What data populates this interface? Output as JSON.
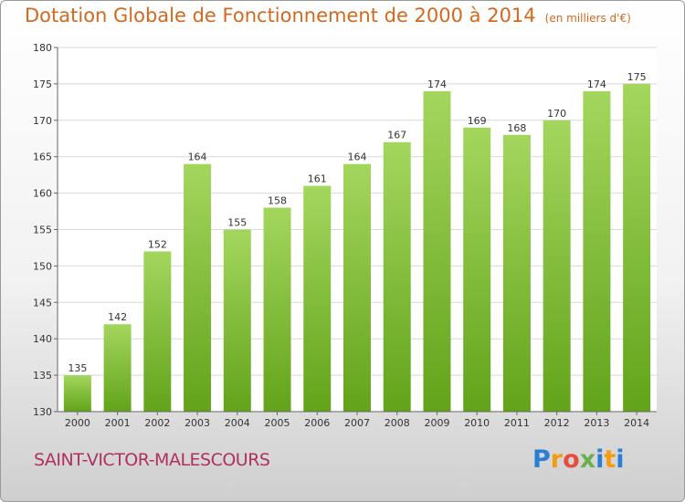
{
  "title": "Dotation Globale de Fonctionnement de 2000 à 2014",
  "unit": "(en milliers d'€)",
  "commune": "SAINT-VICTOR-MALESCOURS",
  "logo": {
    "letters": [
      "P",
      "r",
      "o",
      "x",
      "i",
      "t",
      "i"
    ],
    "colors": [
      "#2a7fd4",
      "#f39c12",
      "#e74c3c",
      "#6ab04c",
      "#2a7fd4",
      "#f39c12",
      "#2a7fd4"
    ]
  },
  "colors": {
    "bar_light": "#a4d65e",
    "bar_dark": "#62a31a",
    "title": "#d2691e",
    "commune": "#b03060"
  },
  "chart_data": {
    "type": "bar",
    "categories": [
      "2000",
      "2001",
      "2002",
      "2003",
      "2004",
      "2005",
      "2006",
      "2007",
      "2008",
      "2009",
      "2010",
      "2011",
      "2012",
      "2013",
      "2014"
    ],
    "values": [
      135,
      142,
      152,
      164,
      155,
      158,
      161,
      164,
      167,
      174,
      169,
      168,
      170,
      174,
      175
    ],
    "ylim": [
      130,
      180
    ],
    "yticks": [
      130,
      135,
      140,
      145,
      150,
      155,
      160,
      165,
      170,
      175,
      180
    ],
    "grid": true
  }
}
